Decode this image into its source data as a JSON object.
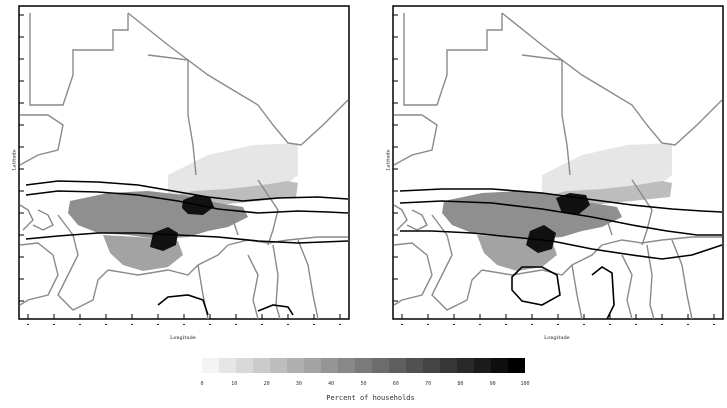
{
  "panels": [
    {
      "ylabel": "Latitude",
      "xlabel": "Longitude"
    },
    {
      "ylabel": "Latitude",
      "xlabel": "Longitude"
    }
  ],
  "colorbar": {
    "title": "Percent of households",
    "ticks": [
      "0",
      "10",
      "20",
      "30",
      "40",
      "50",
      "60",
      "70",
      "80",
      "90",
      "100"
    ],
    "gray_start": "#f4f4f4",
    "gray_end": "#000000"
  },
  "fills": {
    "north": "#e6e6e6",
    "sahel": "#bdbdbd",
    "mid": "#8f8f8f",
    "south": "#a3a3a3",
    "dark": "#111111"
  },
  "colors": {
    "border": "#8a8a8a",
    "contour": "#000000"
  }
}
